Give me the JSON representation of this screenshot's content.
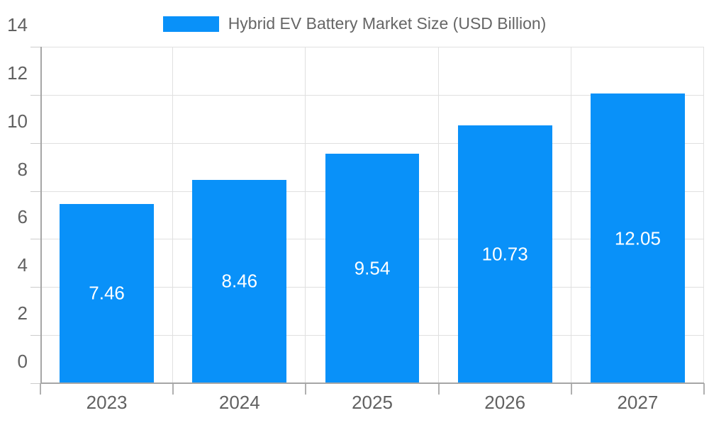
{
  "colors": {
    "bar": "#0991f9",
    "grid": "#e0e0e0",
    "axis": "#a6a6a6",
    "y_tick": "#cccccc",
    "x_tick": "#b0b0b0",
    "tick_label": "#616161",
    "legend_text": "#666666",
    "value_label": "#ffffff",
    "background": "#ffffff"
  },
  "chart_data": {
    "type": "bar",
    "title": "Hybrid EV Battery Market Size (USD Billion)",
    "legend_label": "Hybrid EV Battery Market Size (USD Billion)",
    "legend_position": "top-center",
    "categories": [
      "2023",
      "2024",
      "2025",
      "2026",
      "2027"
    ],
    "values": [
      7.46,
      8.46,
      9.54,
      10.73,
      12.05
    ],
    "value_labels": [
      "7.46",
      "8.46",
      "9.54",
      "10.73",
      "12.05"
    ],
    "xlabel": "",
    "ylabel": "",
    "ylim": [
      0,
      14
    ],
    "y_ticks": [
      0,
      2,
      4,
      6,
      8,
      10,
      12,
      14
    ],
    "grid": true,
    "value_labels_position": "inside-center"
  }
}
